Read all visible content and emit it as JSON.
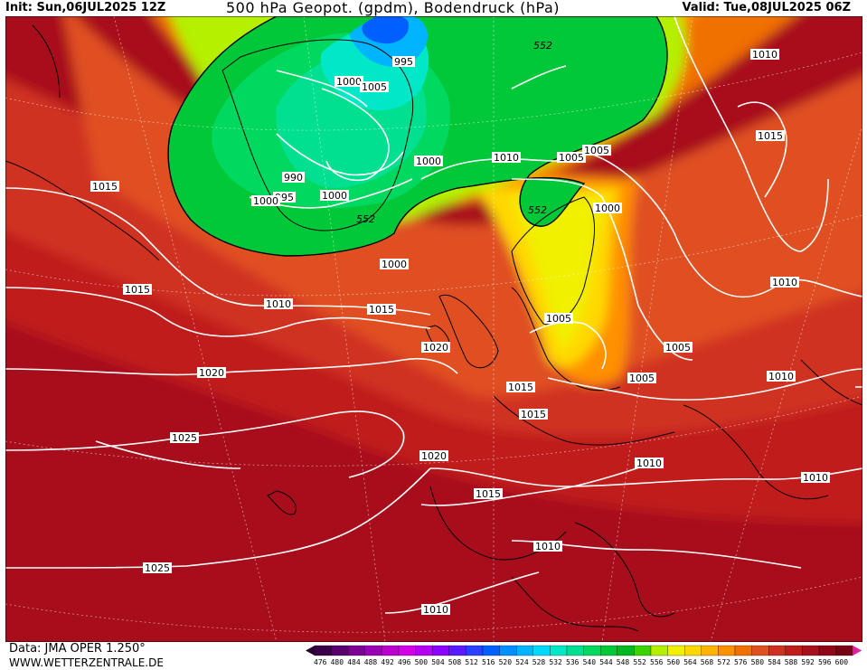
{
  "header": {
    "init": "Init: Sun,06JUL2025 12Z",
    "title": "500 hPa Geopot. (gpdm), Bodendruck (hPa)",
    "valid": "Valid: Tue,08JUL2025 06Z"
  },
  "footer": {
    "source": "Data: JMA OPER 1.250°",
    "website": "WWW.WETTERZENTRALE.DE"
  },
  "colorbar": {
    "values": [
      "476",
      "480",
      "484",
      "488",
      "492",
      "496",
      "500",
      "504",
      "508",
      "512",
      "516",
      "520",
      "524",
      "528",
      "532",
      "536",
      "540",
      "544",
      "548",
      "552",
      "556",
      "560",
      "564",
      "568",
      "572",
      "576",
      "580",
      "584",
      "588",
      "592",
      "596",
      "600"
    ],
    "colors": [
      "#3a0048",
      "#5a006e",
      "#7d0094",
      "#9a00b4",
      "#bb00d0",
      "#d400e8",
      "#b400f0",
      "#8c00ff",
      "#5a1aff",
      "#2a40ff",
      "#0060ff",
      "#0090ff",
      "#00b4ff",
      "#00d8ff",
      "#00e8c8",
      "#00e090",
      "#00d860",
      "#00c838",
      "#00b820",
      "#3cd400",
      "#b4f000",
      "#f0f000",
      "#ffd800",
      "#ffb400",
      "#ff9000",
      "#f07000",
      "#e05020",
      "#d03020",
      "#c01c1c",
      "#a8101c",
      "#900818",
      "#780014"
    ]
  },
  "map": {
    "geopotential_labels": [
      "552",
      "552",
      "552"
    ],
    "pressure_labels": [
      "995",
      "1000",
      "1005",
      "1000",
      "990",
      "995",
      "1000",
      "1000",
      "1000",
      "1010",
      "1005",
      "1005",
      "1000",
      "1015",
      "1010",
      "1015",
      "1015",
      "1010",
      "1015",
      "1020",
      "1005",
      "1005",
      "1005",
      "1010",
      "1015",
      "1020",
      "1025",
      "1020",
      "1015",
      "1010",
      "1010",
      "1025",
      "1010",
      "1010",
      "1010",
      "1015"
    ]
  }
}
